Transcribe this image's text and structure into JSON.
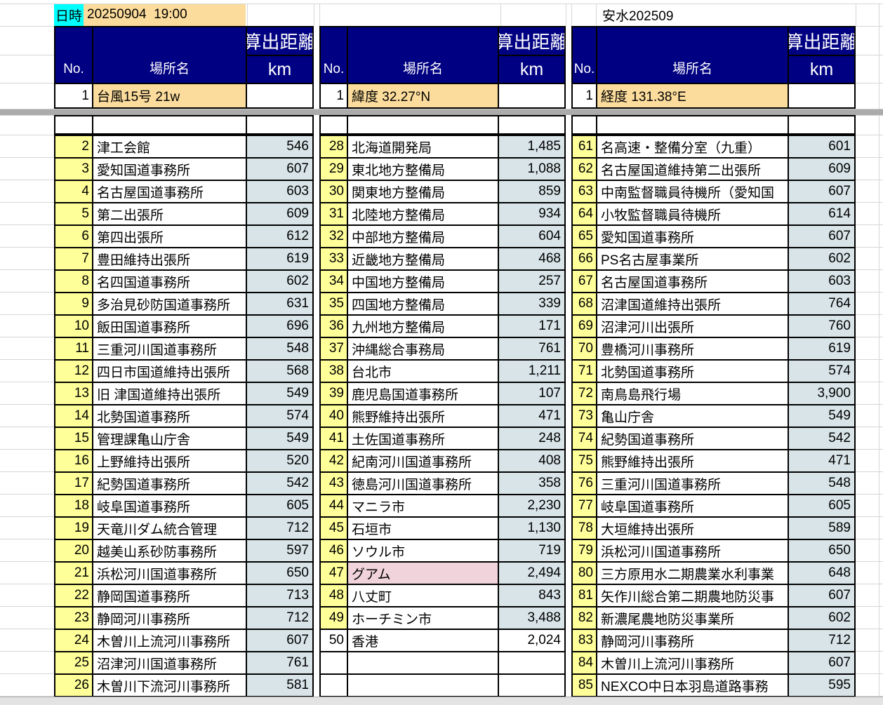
{
  "header": {
    "datetime_label": "日時",
    "datetime_value": "20250904  19:00",
    "doc_ref": "安水202509"
  },
  "table_header": {
    "no": "No.",
    "place": "場所名",
    "distance": "算出距離",
    "unit": "km"
  },
  "pinned": [
    {
      "no": "1",
      "place": "台風15号 21w",
      "km": ""
    },
    {
      "no": "1",
      "place": "緯度 32.27°N",
      "km": ""
    },
    {
      "no": "1",
      "place": "経度 131.38°E",
      "km": ""
    }
  ],
  "groups": [
    {
      "rows": [
        [
          "2",
          "津工会館",
          "546"
        ],
        [
          "3",
          "愛知国道事務所",
          "607"
        ],
        [
          "4",
          "名古屋国道事務所",
          "603"
        ],
        [
          "5",
          "第二出張所",
          "609"
        ],
        [
          "6",
          "第四出張所",
          "612"
        ],
        [
          "7",
          "豊田維持出張所",
          "619"
        ],
        [
          "8",
          "名四国道事務所",
          "602"
        ],
        [
          "9",
          "多治見砂防国道事務所",
          "631"
        ],
        [
          "10",
          "飯田国道事務所",
          "696"
        ],
        [
          "11",
          "三重河川国道事務所",
          "548"
        ],
        [
          "12",
          "四日市国道維持出張所",
          "568"
        ],
        [
          "13",
          "旧 津国道維持出張所",
          "549"
        ],
        [
          "14",
          "北勢国道事務所",
          "574"
        ],
        [
          "15",
          "管理課亀山庁舎",
          "549"
        ],
        [
          "16",
          "上野維持出張所",
          "520"
        ],
        [
          "17",
          "紀勢国道事務所",
          "542"
        ],
        [
          "18",
          "岐阜国道事務所",
          "605"
        ],
        [
          "19",
          "天竜川ダム統合管理",
          "712"
        ],
        [
          "20",
          "越美山系砂防事務所",
          "597"
        ],
        [
          "21",
          "浜松河川国道事務所",
          "650"
        ],
        [
          "22",
          "静岡国道事務所",
          "713"
        ],
        [
          "23",
          "静岡河川事務所",
          "712"
        ],
        [
          "24",
          "木曽川上流河川事務所",
          "607"
        ],
        [
          "25",
          "沼津河川国道事務所",
          "761"
        ],
        [
          "26",
          "木曽川下流河川事務所",
          "581"
        ]
      ]
    },
    {
      "rows": [
        [
          "28",
          "北海道開発局",
          "1,485"
        ],
        [
          "29",
          "東北地方整備局",
          "1,088"
        ],
        [
          "30",
          "関東地方整備局",
          "859"
        ],
        [
          "31",
          "北陸地方整備局",
          "934"
        ],
        [
          "32",
          "中部地方整備局",
          "604"
        ],
        [
          "33",
          "近畿地方整備局",
          "468"
        ],
        [
          "34",
          "中国地方整備局",
          "257"
        ],
        [
          "35",
          "四国地方整備局",
          "339"
        ],
        [
          "36",
          "九州地方整備局",
          "171"
        ],
        [
          "37",
          "沖縄総合事務局",
          "761"
        ],
        [
          "38",
          "台北市",
          "1,211"
        ],
        [
          "39",
          "鹿児島国道事務所",
          "107"
        ],
        [
          "40",
          "熊野維持出張所",
          "471"
        ],
        [
          "41",
          "土佐国道事務所",
          "248"
        ],
        [
          "42",
          "紀南河川国道事務所",
          "408"
        ],
        [
          "43",
          "徳島河川国道事務所",
          "358"
        ],
        [
          "44",
          "マニラ市",
          "2,230"
        ],
        [
          "45",
          "石垣市",
          "1,130"
        ],
        [
          "46",
          "ソウル市",
          "719"
        ],
        [
          "47",
          "グアム",
          "2,494",
          "pink"
        ],
        [
          "48",
          "八丈町",
          "843"
        ],
        [
          "49",
          "ホーチミン市",
          "3,488"
        ],
        [
          "50",
          "香港",
          "2,024",
          "plain"
        ],
        [
          "",
          "",
          "",
          "empty"
        ],
        [
          "",
          "",
          "",
          "empty"
        ]
      ]
    },
    {
      "rows": [
        [
          "61",
          "名高速・整備分室（九重）",
          "601"
        ],
        [
          "62",
          "名古屋国道維持第二出張所",
          "609"
        ],
        [
          "63",
          "中南監督職員待機所（愛知国",
          "607"
        ],
        [
          "64",
          "小牧監督職員待機所",
          "614"
        ],
        [
          "65",
          "愛知国道事務所",
          "607"
        ],
        [
          "66",
          "PS名古屋事業所",
          "602"
        ],
        [
          "67",
          "名古屋国道事務所",
          "603"
        ],
        [
          "68",
          "沼津国道維持出張所",
          "764"
        ],
        [
          "69",
          "沼津河川出張所",
          "760"
        ],
        [
          "70",
          "豊橋河川事務所",
          "619"
        ],
        [
          "71",
          "北勢国道事務所",
          "574"
        ],
        [
          "72",
          "南鳥島飛行場",
          "3,900"
        ],
        [
          "73",
          "亀山庁舎",
          "549"
        ],
        [
          "74",
          "紀勢国道事務所",
          "542"
        ],
        [
          "75",
          "熊野維持出張所",
          "471"
        ],
        [
          "76",
          "三重河川国道事務所",
          "548"
        ],
        [
          "77",
          "岐阜国道事務所",
          "605"
        ],
        [
          "78",
          "大垣維持出張所",
          "589"
        ],
        [
          "79",
          "浜松河川国道事務所",
          "650"
        ],
        [
          "80",
          "三方原用水二期農業水利事業",
          "648"
        ],
        [
          "81",
          "矢作川総合第二期農地防災事",
          "607"
        ],
        [
          "82",
          "新濃尾農地防災事業所",
          "602"
        ],
        [
          "83",
          "静岡河川事務所",
          "712"
        ],
        [
          "84",
          "木曽川上流河川事務所",
          "607"
        ],
        [
          "85",
          "NEXCO中日本羽島道路事務",
          "595"
        ]
      ]
    }
  ],
  "colors": {
    "header_bg": "#000082",
    "no_col_bg": "#FFFF99",
    "distance_col_bg": "#D8E4E8",
    "highlight_orange": "#FBDC9C",
    "highlight_cyan": "#00FFFF",
    "highlight_pink": "#F1D3DC"
  }
}
